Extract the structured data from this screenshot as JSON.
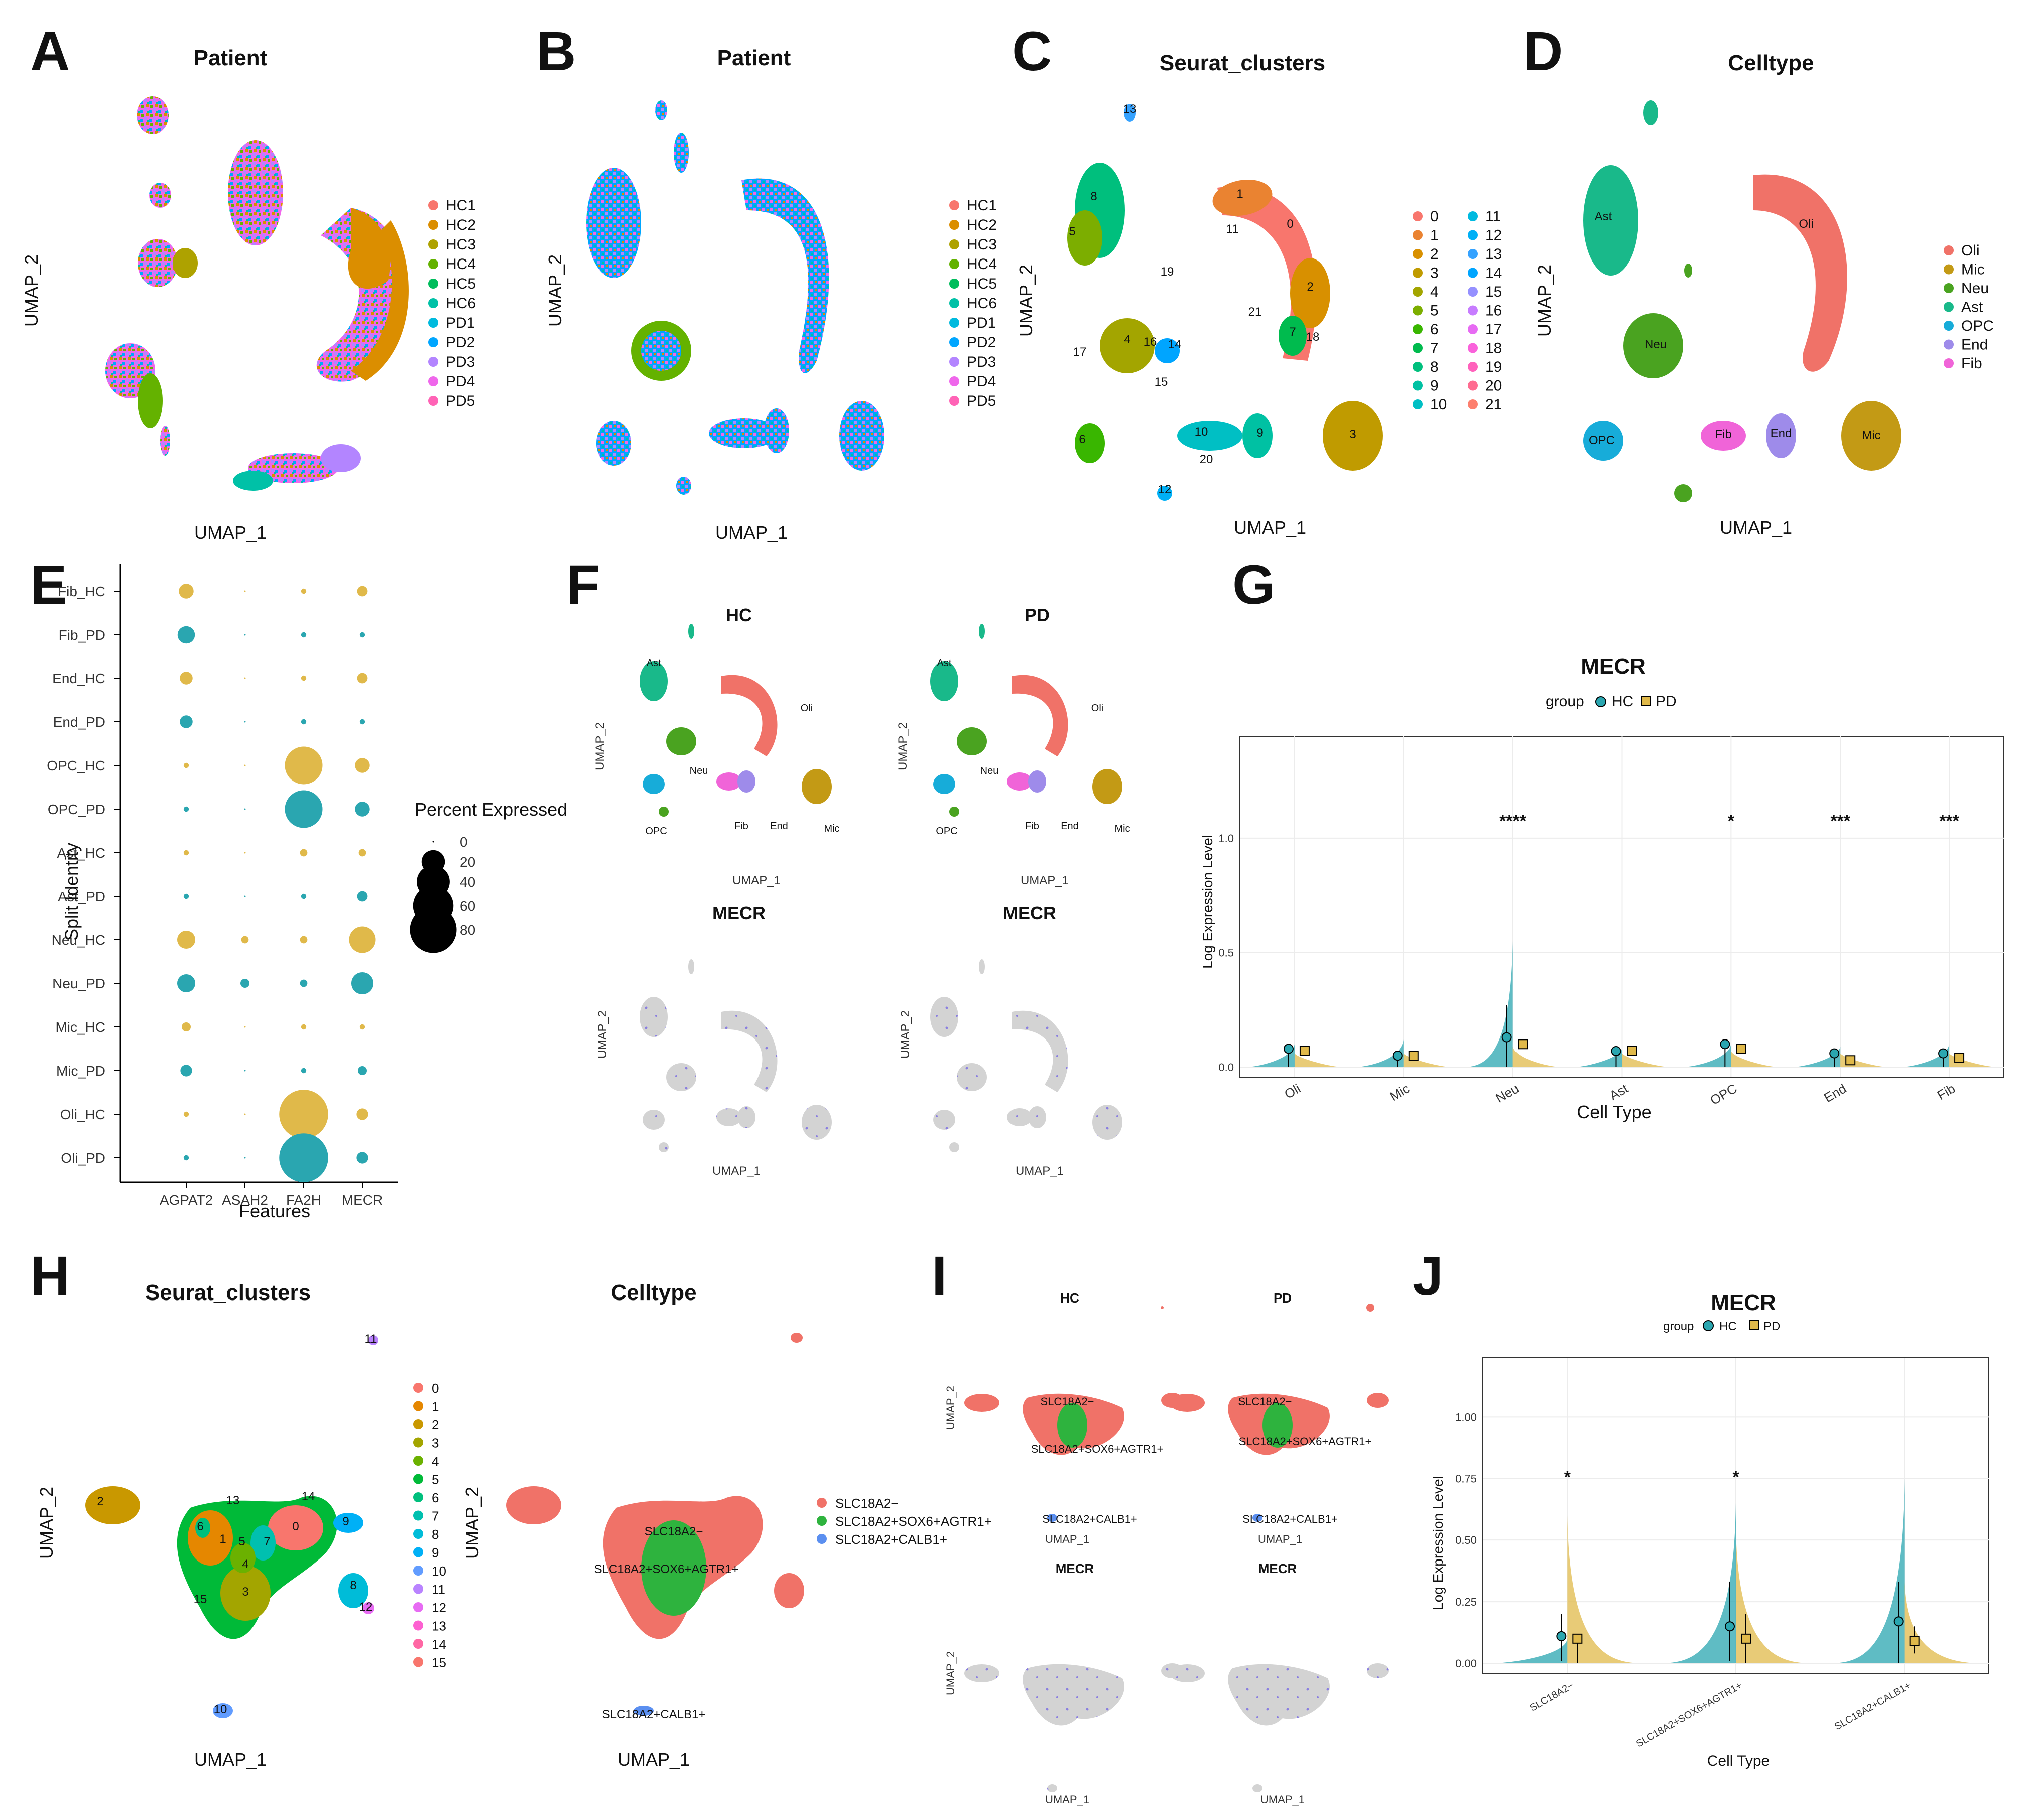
{
  "panel_letters": [
    "A",
    "B",
    "C",
    "D",
    "E",
    "F",
    "G",
    "H",
    "I",
    "J"
  ],
  "colors": {
    "hc": "#2aa6b0",
    "pd": "#e0b94a",
    "grey": "#d3d3d3",
    "expr": "#8a7fe0",
    "Oli": "#f07268",
    "Mic": "#c39a15",
    "Neu": "#4aa320",
    "Ast": "#19b98a",
    "OPC": "#17acd9",
    "End": "#9e8bea",
    "Fib": "#f064d8",
    "SLC18A2-": "#f07268",
    "SLC18A2+SOX6+AGTR1+": "#2eb33e",
    "SLC18A2+CALB1+": "#5b8ff0"
  },
  "chart_data": [
    {
      "id": "A",
      "type": "scatter",
      "title": "Patient",
      "xlabel": "UMAP_1",
      "ylabel": "UMAP_2",
      "legend": [
        "HC1",
        "HC2",
        "HC3",
        "HC4",
        "HC5",
        "HC6",
        "PD1",
        "PD2",
        "PD3",
        "PD4",
        "PD5"
      ],
      "legend_colors": [
        "#f8766d",
        "#db8e00",
        "#aea200",
        "#64b200",
        "#00bd5c",
        "#00c1a7",
        "#00bade",
        "#00a6ff",
        "#b385ff",
        "#ef67eb",
        "#ff63b6"
      ]
    },
    {
      "id": "B",
      "type": "scatter",
      "title": "Patient",
      "xlabel": "UMAP_1",
      "ylabel": "UMAP_2",
      "legend": [
        "HC1",
        "HC2",
        "HC3",
        "HC4",
        "HC5",
        "HC6",
        "PD1",
        "PD2",
        "PD3",
        "PD4",
        "PD5"
      ],
      "legend_colors": [
        "#f8766d",
        "#db8e00",
        "#aea200",
        "#64b200",
        "#00bd5c",
        "#00c1a7",
        "#00bade",
        "#00a6ff",
        "#b385ff",
        "#ef67eb",
        "#ff63b6"
      ]
    },
    {
      "id": "C",
      "type": "scatter",
      "title": "Seurat_clusters",
      "xlabel": "UMAP_1",
      "ylabel": "UMAP_2",
      "legend": [
        "0",
        "1",
        "2",
        "3",
        "4",
        "5",
        "6",
        "7",
        "8",
        "9",
        "10",
        "11",
        "12",
        "13",
        "14",
        "15",
        "16",
        "17",
        "18",
        "19",
        "20",
        "21"
      ],
      "cluster_labels": [
        "0",
        "1",
        "2",
        "3",
        "4",
        "5",
        "6",
        "7",
        "8",
        "9",
        "10",
        "11",
        "12",
        "13",
        "14",
        "15",
        "16",
        "17",
        "18",
        "19",
        "20",
        "21"
      ]
    },
    {
      "id": "D",
      "type": "scatter",
      "title": "Celltype",
      "xlabel": "UMAP_1",
      "ylabel": "UMAP_2",
      "legend": [
        "Oli",
        "Mic",
        "Neu",
        "Ast",
        "OPC",
        "End",
        "Fib"
      ]
    },
    {
      "id": "E",
      "type": "dotplot",
      "xlabel": "Features",
      "ylabel": "Split Identity",
      "features": [
        "AGPAT2",
        "ASAH2",
        "FA2H",
        "MECR"
      ],
      "identities": [
        "Fib_HC",
        "Fib_PD",
        "End_HC",
        "End_PD",
        "OPC_HC",
        "OPC_PD",
        "Ast_HC",
        "Ast_PD",
        "Neu_HC",
        "Neu_PD",
        "Mic_HC",
        "Mic_PD",
        "Oli_HC",
        "Oli_PD"
      ],
      "percent_expressed": [
        [
          8,
          0,
          1,
          4
        ],
        [
          11,
          0,
          1,
          1
        ],
        [
          6,
          0,
          1,
          4
        ],
        [
          6,
          0,
          1,
          1
        ],
        [
          1,
          0,
          52,
          8
        ],
        [
          1,
          0,
          52,
          8
        ],
        [
          1,
          0,
          2,
          2
        ],
        [
          1,
          0,
          1,
          4
        ],
        [
          12,
          2,
          2,
          26
        ],
        [
          12,
          3,
          2,
          18
        ],
        [
          3,
          0,
          1,
          1
        ],
        [
          5,
          0,
          1,
          3
        ],
        [
          1,
          0,
          88,
          5
        ],
        [
          1,
          0,
          88,
          5
        ]
      ],
      "size_legend_title": "Percent Expressed",
      "size_legend": [
        "0",
        "20",
        "40",
        "60",
        "80"
      ]
    },
    {
      "id": "F",
      "type": "scatter",
      "xlabel": "UMAP_1",
      "ylabel": "UMAP_2",
      "subtitles": [
        "HC",
        "PD",
        "MECR",
        "MECR"
      ],
      "cell_labels": [
        "Ast",
        "Oli",
        "Neu",
        "OPC",
        "Fib",
        "End",
        "Mic"
      ]
    },
    {
      "id": "G",
      "type": "violin",
      "title": "MECR",
      "xlabel": "Cell Type",
      "ylabel": "Log Expression Level",
      "legend_title": "group",
      "legend": [
        "HC",
        "PD"
      ],
      "categories": [
        "Oli",
        "Mic",
        "Neu",
        "Ast",
        "OPC",
        "End",
        "Fib"
      ],
      "ylim": [
        0,
        1.4
      ],
      "yticks": [
        "0.0",
        "0.5",
        "1.0"
      ],
      "series": [
        {
          "name": "HC",
          "values": [
            0.08,
            0.05,
            0.13,
            0.07,
            0.1,
            0.06,
            0.06
          ],
          "violin_max": [
            0.1,
            0.12,
            0.55,
            0.08,
            0.1,
            0.09,
            0.1
          ]
        },
        {
          "name": "PD",
          "values": [
            0.07,
            0.05,
            0.1,
            0.07,
            0.08,
            0.03,
            0.04
          ],
          "violin_max": [
            0.06,
            0.06,
            0.09,
            0.06,
            0.07,
            0.06,
            0.06
          ]
        }
      ],
      "error_upper": [
        0.08,
        0.05,
        0.27,
        0.07,
        0.1,
        0.06,
        0.06
      ],
      "significance": [
        "",
        "",
        "****",
        "",
        "*",
        "***",
        "***"
      ]
    },
    {
      "id": "H",
      "type": "scatter",
      "xlabel": "UMAP_1",
      "ylabel": "UMAP_2",
      "left_title": "Seurat_clusters",
      "right_title": "Celltype",
      "legend_clusters": [
        "0",
        "1",
        "2",
        "3",
        "4",
        "5",
        "6",
        "7",
        "8",
        "9",
        "10",
        "11",
        "12",
        "13",
        "14",
        "15"
      ],
      "legend_celltypes": [
        "SLC18A2−",
        "SLC18A2+SOX6+AGTR1+",
        "SLC18A2+CALB1+"
      ],
      "cluster_labels": [
        "0",
        "1",
        "2",
        "3",
        "4",
        "5",
        "6",
        "7",
        "8",
        "9",
        "10",
        "11",
        "12",
        "13",
        "14",
        "15"
      ],
      "celltype_labels": [
        "SLC18A2−",
        "SLC18A2+SOX6+AGTR1+",
        "SLC18A2+CALB1+"
      ]
    },
    {
      "id": "I",
      "type": "scatter",
      "xlabel": "UMAP_1",
      "ylabel": "UMAP_2",
      "subtitles": [
        "HC",
        "PD",
        "MECR",
        "MECR"
      ],
      "cell_labels": [
        "SLC18A2−",
        "SLC18A2+SOX6+AGTR1+",
        "SLC18A2+CALB1+"
      ]
    },
    {
      "id": "J",
      "type": "violin",
      "title": "MECR",
      "xlabel": "Cell Type",
      "ylabel": "Log Expression Level",
      "legend_title": "group",
      "legend": [
        "HC",
        "PD"
      ],
      "categories": [
        "SLC18A2−",
        "SLC18A2+SOX6+AGTR1+",
        "SLC18A2+CALB1+"
      ],
      "ylim": [
        0,
        1.2
      ],
      "yticks": [
        "0.00",
        "0.25",
        "0.50",
        "0.75",
        "1.00"
      ],
      "series": [
        {
          "name": "HC",
          "values": [
            0.11,
            0.15,
            0.17
          ],
          "violin_max": [
            0.1,
            0.65,
            0.75
          ],
          "error": [
            [
              0.01,
              0.2
            ],
            [
              0.01,
              0.33
            ],
            [
              0.0,
              0.33
            ]
          ]
        },
        {
          "name": "PD",
          "values": [
            0.1,
            0.1,
            0.09
          ],
          "violin_max": [
            0.6,
            0.55,
            0.33
          ],
          "error": [
            [
              0.0,
              0.1
            ],
            [
              0.0,
              0.2
            ],
            [
              0.04,
              0.15
            ]
          ]
        }
      ],
      "significance": [
        "*",
        "*",
        ""
      ]
    }
  ]
}
